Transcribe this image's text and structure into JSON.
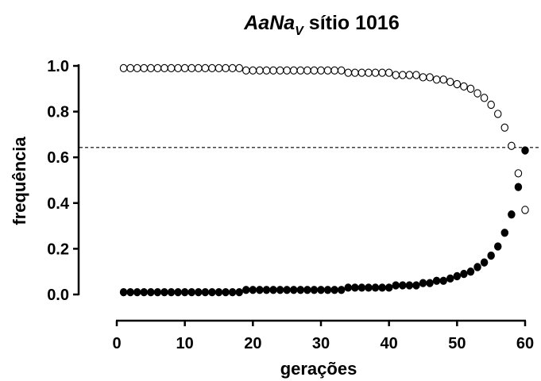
{
  "chart_data": {
    "type": "scatter",
    "title": {
      "main": "AaNa",
      "subscript": "V",
      "rest": " sítio 1016"
    },
    "xlabel": "gerações",
    "ylabel": "frequência",
    "xlim": [
      0,
      60
    ],
    "ylim": [
      0,
      1.0
    ],
    "xticks": [
      0,
      10,
      20,
      30,
      40,
      50,
      60
    ],
    "yticks": [
      0.0,
      0.2,
      0.4,
      0.6,
      0.8,
      1.0
    ],
    "xtick_labels": [
      "0",
      "10",
      "20",
      "30",
      "40",
      "50",
      "60"
    ],
    "ytick_labels": [
      "0.0",
      "0.2",
      "0.4",
      "0.6",
      "0.8",
      "1.0"
    ],
    "grid": false,
    "reference_line": {
      "y": 0.643,
      "style": "dashed"
    },
    "series": [
      {
        "marker": "open-circle",
        "color": "#000000",
        "x": [
          1,
          2,
          3,
          4,
          5,
          6,
          7,
          8,
          9,
          10,
          11,
          12,
          13,
          14,
          15,
          16,
          17,
          18,
          19,
          20,
          21,
          22,
          23,
          24,
          25,
          26,
          27,
          28,
          29,
          30,
          31,
          32,
          33,
          34,
          35,
          36,
          37,
          38,
          39,
          40,
          41,
          42,
          43,
          44,
          45,
          46,
          47,
          48,
          49,
          50,
          51,
          52,
          53,
          54,
          55,
          56,
          57,
          58,
          59,
          60
        ],
        "y": [
          0.99,
          0.99,
          0.99,
          0.99,
          0.99,
          0.99,
          0.99,
          0.99,
          0.99,
          0.99,
          0.99,
          0.99,
          0.99,
          0.99,
          0.99,
          0.99,
          0.99,
          0.99,
          0.98,
          0.98,
          0.98,
          0.98,
          0.98,
          0.98,
          0.98,
          0.98,
          0.98,
          0.98,
          0.98,
          0.98,
          0.98,
          0.98,
          0.98,
          0.97,
          0.97,
          0.97,
          0.97,
          0.97,
          0.97,
          0.97,
          0.96,
          0.96,
          0.96,
          0.96,
          0.95,
          0.95,
          0.94,
          0.94,
          0.93,
          0.92,
          0.91,
          0.9,
          0.88,
          0.86,
          0.83,
          0.79,
          0.73,
          0.65,
          0.53,
          0.37
        ]
      },
      {
        "marker": "filled-circle",
        "color": "#000000",
        "x": [
          1,
          2,
          3,
          4,
          5,
          6,
          7,
          8,
          9,
          10,
          11,
          12,
          13,
          14,
          15,
          16,
          17,
          18,
          19,
          20,
          21,
          22,
          23,
          24,
          25,
          26,
          27,
          28,
          29,
          30,
          31,
          32,
          33,
          34,
          35,
          36,
          37,
          38,
          39,
          40,
          41,
          42,
          43,
          44,
          45,
          46,
          47,
          48,
          49,
          50,
          51,
          52,
          53,
          54,
          55,
          56,
          57,
          58,
          59,
          60
        ],
        "y": [
          0.01,
          0.01,
          0.01,
          0.01,
          0.01,
          0.01,
          0.01,
          0.01,
          0.01,
          0.01,
          0.01,
          0.01,
          0.01,
          0.01,
          0.01,
          0.01,
          0.01,
          0.01,
          0.02,
          0.02,
          0.02,
          0.02,
          0.02,
          0.02,
          0.02,
          0.02,
          0.02,
          0.02,
          0.02,
          0.02,
          0.02,
          0.02,
          0.02,
          0.03,
          0.03,
          0.03,
          0.03,
          0.03,
          0.03,
          0.03,
          0.04,
          0.04,
          0.04,
          0.04,
          0.05,
          0.05,
          0.06,
          0.06,
          0.07,
          0.08,
          0.09,
          0.1,
          0.12,
          0.14,
          0.17,
          0.21,
          0.27,
          0.35,
          0.47,
          0.63
        ]
      }
    ]
  }
}
